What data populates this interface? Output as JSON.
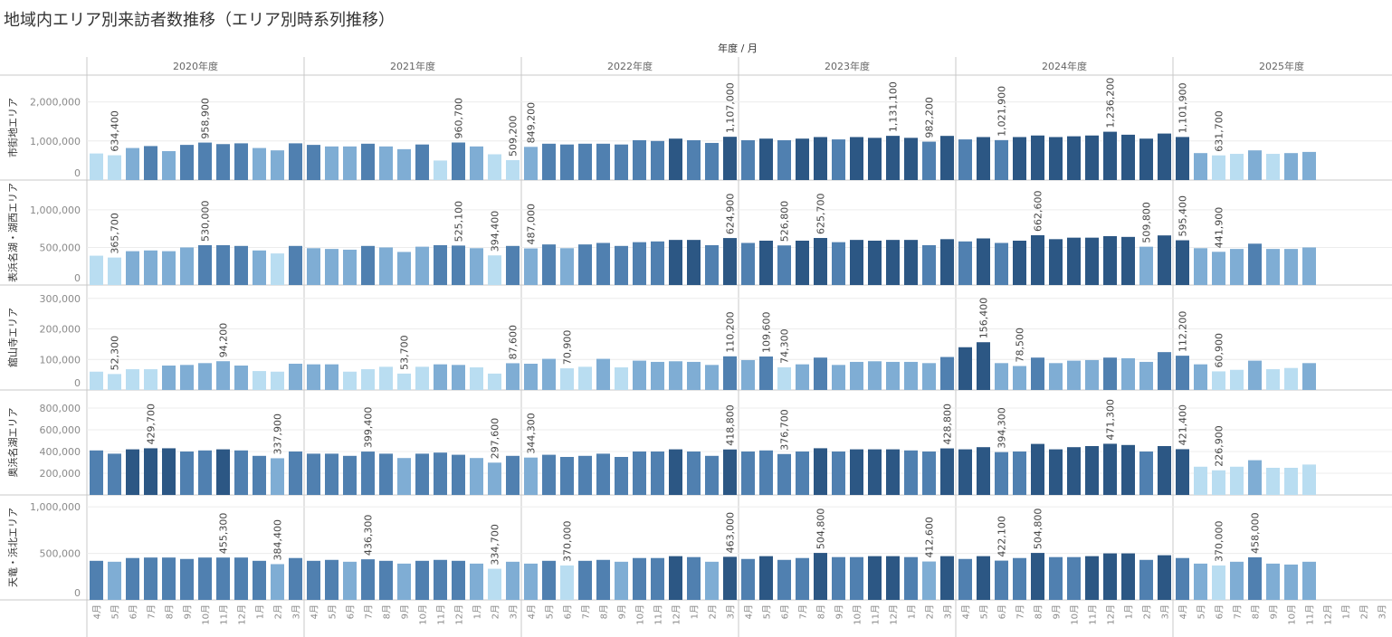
{
  "title": "地域内エリア別来訪者数推移（エリア別時系列推移）",
  "chart_data": {
    "type": "bar",
    "title": "地域内エリア別来訪者数推移（エリア別時系列推移）",
    "column_header": "年度 / 月",
    "years": [
      "2020年度",
      "2021年度",
      "2022年度",
      "2023年度",
      "2024年度",
      "2025年度"
    ],
    "months": [
      "4月",
      "5月",
      "6月",
      "7月",
      "8月",
      "9月",
      "10月",
      "11月",
      "12月",
      "1月",
      "2月",
      "3月"
    ],
    "color_scale": [
      "#b9ddf1",
      "#7fadd4",
      "#5080b0",
      "#2c5784"
    ],
    "rows": [
      {
        "name": "市街地エリア",
        "ylim": [
          0,
          2500000
        ],
        "ticks": [
          0,
          1000000,
          2000000
        ],
        "tick_labels": [
          "0",
          "1,000,000",
          "2,000,000"
        ],
        "values": [
          [
            680000,
            634400,
            820000,
            870000,
            740000,
            900000,
            958900,
            920000,
            940000,
            820000,
            760000,
            940000
          ],
          [
            900000,
            860000,
            860000,
            930000,
            860000,
            790000,
            910000,
            500000,
            960700,
            860000,
            660000,
            509200
          ],
          [
            849200,
            930000,
            910000,
            930000,
            930000,
            910000,
            1020000,
            1000000,
            1060000,
            1020000,
            950000,
            1107000
          ],
          [
            1020000,
            1060000,
            1020000,
            1060000,
            1100000,
            1040000,
            1100000,
            1080000,
            1131100,
            1080000,
            982200,
            1130000
          ],
          [
            1040000,
            1100000,
            1021900,
            1100000,
            1140000,
            1100000,
            1120000,
            1140000,
            1236200,
            1160000,
            1060000,
            1190000
          ],
          [
            1101900,
            690000,
            631700,
            670000,
            760000,
            670000,
            690000,
            720000,
            null,
            null,
            null,
            null
          ]
        ],
        "labels": [
          {
            "year": 0,
            "month": 1,
            "text": "634,400"
          },
          {
            "year": 0,
            "month": 6,
            "text": "958,900"
          },
          {
            "year": 1,
            "month": 8,
            "text": "960,700"
          },
          {
            "year": 1,
            "month": 11,
            "text": "509,200"
          },
          {
            "year": 2,
            "month": 0,
            "text": "849,200"
          },
          {
            "year": 2,
            "month": 11,
            "text": "1,107,000"
          },
          {
            "year": 3,
            "month": 8,
            "text": "1,131,100"
          },
          {
            "year": 3,
            "month": 10,
            "text": "982,200"
          },
          {
            "year": 4,
            "month": 2,
            "text": "1,021,900"
          },
          {
            "year": 4,
            "month": 8,
            "text": "1,236,200"
          },
          {
            "year": 5,
            "month": 0,
            "text": "1,101,900"
          },
          {
            "year": 5,
            "month": 2,
            "text": "631,700"
          }
        ]
      },
      {
        "name": "表浜名湖・湖西エリア",
        "ylim": [
          0,
          1300000
        ],
        "ticks": [
          0,
          500000,
          1000000
        ],
        "tick_labels": [
          "0",
          "500,000",
          "1,000,000"
        ],
        "values": [
          [
            390000,
            365700,
            450000,
            460000,
            450000,
            500000,
            530000,
            530000,
            520000,
            460000,
            420000,
            520000
          ],
          [
            490000,
            480000,
            470000,
            520000,
            500000,
            440000,
            510000,
            530000,
            525100,
            490000,
            394400,
            520000
          ],
          [
            487000,
            540000,
            490000,
            540000,
            560000,
            520000,
            570000,
            580000,
            600000,
            600000,
            530000,
            624900
          ],
          [
            560000,
            590000,
            526800,
            590000,
            625700,
            570000,
            600000,
            590000,
            600000,
            600000,
            530000,
            610000
          ],
          [
            580000,
            620000,
            560000,
            590000,
            662600,
            610000,
            630000,
            630000,
            650000,
            640000,
            509800,
            660000
          ],
          [
            595400,
            490000,
            441900,
            480000,
            550000,
            480000,
            480000,
            500000,
            null,
            null,
            null,
            null
          ]
        ],
        "labels": [
          {
            "year": 0,
            "month": 1,
            "text": "365,700"
          },
          {
            "year": 0,
            "month": 6,
            "text": "530,000"
          },
          {
            "year": 1,
            "month": 8,
            "text": "525,100"
          },
          {
            "year": 1,
            "month": 10,
            "text": "394,400"
          },
          {
            "year": 2,
            "month": 0,
            "text": "487,000"
          },
          {
            "year": 2,
            "month": 11,
            "text": "624,900"
          },
          {
            "year": 3,
            "month": 2,
            "text": "526,800"
          },
          {
            "year": 3,
            "month": 4,
            "text": "625,700"
          },
          {
            "year": 4,
            "month": 4,
            "text": "662,600"
          },
          {
            "year": 4,
            "month": 10,
            "text": "509,800"
          },
          {
            "year": 5,
            "month": 0,
            "text": "595,400"
          },
          {
            "year": 5,
            "month": 2,
            "text": "441,900"
          }
        ]
      },
      {
        "name": "舘山寺エリア",
        "ylim": [
          0,
          320000
        ],
        "ticks": [
          0,
          100000,
          200000,
          300000
        ],
        "tick_labels": [
          "0",
          "100,000",
          "200,000",
          "300,000"
        ],
        "values": [
          [
            60000,
            52300,
            68000,
            68000,
            80000,
            82000,
            88000,
            94200,
            80000,
            62000,
            60000,
            86000
          ],
          [
            84000,
            84000,
            60000,
            68000,
            76000,
            53700,
            76000,
            84000,
            82000,
            74000,
            53700,
            87600
          ],
          [
            86000,
            102000,
            70900,
            76000,
            102000,
            74000,
            96000,
            92000,
            94000,
            92000,
            82000,
            110200
          ],
          [
            98000,
            109600,
            74300,
            84000,
            106000,
            82000,
            92000,
            94000,
            92000,
            92000,
            88000,
            108000
          ],
          [
            140000,
            156400,
            88000,
            78500,
            106000,
            88000,
            96000,
            98000,
            106000,
            104000,
            92000,
            124000
          ],
          [
            112200,
            84000,
            60900,
            66000,
            96000,
            68000,
            72000,
            88000,
            null,
            null,
            null,
            null
          ]
        ],
        "labels": [
          {
            "year": 0,
            "month": 1,
            "text": "52,300"
          },
          {
            "year": 0,
            "month": 7,
            "text": "94,200"
          },
          {
            "year": 1,
            "month": 5,
            "text": "53,700"
          },
          {
            "year": 1,
            "month": 11,
            "text": "87,600"
          },
          {
            "year": 2,
            "month": 2,
            "text": "70,900"
          },
          {
            "year": 2,
            "month": 11,
            "text": "110,200"
          },
          {
            "year": 3,
            "month": 1,
            "text": "109,600"
          },
          {
            "year": 3,
            "month": 2,
            "text": "74,300"
          },
          {
            "year": 4,
            "month": 1,
            "text": "156,400"
          },
          {
            "year": 4,
            "month": 3,
            "text": "78,500"
          },
          {
            "year": 5,
            "month": 0,
            "text": "112,200"
          },
          {
            "year": 5,
            "month": 2,
            "text": "60,900"
          }
        ]
      },
      {
        "name": "奥浜名湖エリア",
        "ylim": [
          0,
          900000
        ],
        "ticks": [
          200000,
          400000,
          600000,
          800000
        ],
        "tick_labels": [
          "200,000",
          "400,000",
          "600,000",
          "800,000"
        ],
        "values": [
          [
            410000,
            380000,
            420000,
            429700,
            429700,
            400000,
            410000,
            420000,
            410000,
            360000,
            337900,
            400000
          ],
          [
            380000,
            380000,
            360000,
            399400,
            380000,
            340000,
            380000,
            390000,
            370000,
            340000,
            297600,
            360000
          ],
          [
            344300,
            370000,
            350000,
            360000,
            380000,
            350000,
            400000,
            400000,
            420000,
            400000,
            360000,
            418800
          ],
          [
            400000,
            410000,
            376700,
            400000,
            430000,
            400000,
            420000,
            420000,
            420000,
            410000,
            400000,
            428800
          ],
          [
            420000,
            440000,
            394300,
            400000,
            470000,
            420000,
            440000,
            450000,
            471300,
            460000,
            400000,
            450000
          ],
          [
            421400,
            260000,
            226900,
            260000,
            320000,
            250000,
            250000,
            280000,
            null,
            null,
            null,
            null
          ]
        ],
        "labels": [
          {
            "year": 0,
            "month": 3,
            "text": "429,700"
          },
          {
            "year": 0,
            "month": 10,
            "text": "337,900"
          },
          {
            "year": 1,
            "month": 3,
            "text": "399,400"
          },
          {
            "year": 1,
            "month": 10,
            "text": "297,600"
          },
          {
            "year": 2,
            "month": 0,
            "text": "344,300"
          },
          {
            "year": 2,
            "month": 11,
            "text": "418,800"
          },
          {
            "year": 3,
            "month": 2,
            "text": "376,700"
          },
          {
            "year": 3,
            "month": 11,
            "text": "428,800"
          },
          {
            "year": 4,
            "month": 2,
            "text": "394,300"
          },
          {
            "year": 4,
            "month": 8,
            "text": "471,300"
          },
          {
            "year": 5,
            "month": 0,
            "text": "421,400"
          },
          {
            "year": 5,
            "month": 2,
            "text": "226,900"
          }
        ]
      },
      {
        "name": "天竜・浜北エリア",
        "ylim": [
          0,
          1050000
        ],
        "ticks": [
          0,
          500000,
          1000000
        ],
        "tick_labels": [
          "0",
          "500,000",
          "1,000,000"
        ],
        "values": [
          [
            420000,
            410000,
            450000,
            455300,
            455300,
            440000,
            455300,
            455300,
            455300,
            420000,
            384400,
            450000
          ],
          [
            420000,
            430000,
            410000,
            436300,
            420000,
            390000,
            420000,
            430000,
            420000,
            390000,
            334700,
            410000
          ],
          [
            390000,
            420000,
            370000,
            420000,
            430000,
            410000,
            450000,
            450000,
            470000,
            460000,
            410000,
            463000
          ],
          [
            440000,
            470000,
            430000,
            450000,
            504800,
            460000,
            460000,
            470000,
            470000,
            460000,
            412600,
            470000
          ],
          [
            440000,
            470000,
            422100,
            450000,
            504800,
            460000,
            460000,
            470000,
            500000,
            500000,
            430000,
            480000
          ],
          [
            450000,
            390000,
            370000,
            410000,
            458000,
            390000,
            380000,
            410000,
            null,
            null,
            null,
            null
          ]
        ],
        "labels": [
          {
            "year": 0,
            "month": 7,
            "text": "455,300"
          },
          {
            "year": 0,
            "month": 10,
            "text": "384,400"
          },
          {
            "year": 1,
            "month": 3,
            "text": "436,300"
          },
          {
            "year": 1,
            "month": 10,
            "text": "334,700"
          },
          {
            "year": 2,
            "month": 2,
            "text": "370,000"
          },
          {
            "year": 2,
            "month": 11,
            "text": "463,000"
          },
          {
            "year": 3,
            "month": 4,
            "text": "504,800"
          },
          {
            "year": 3,
            "month": 10,
            "text": "412,600"
          },
          {
            "year": 4,
            "month": 2,
            "text": "422,100"
          },
          {
            "year": 4,
            "month": 4,
            "text": "504,800"
          },
          {
            "year": 5,
            "month": 2,
            "text": "370,000"
          },
          {
            "year": 5,
            "month": 4,
            "text": "458,000"
          }
        ]
      }
    ]
  }
}
